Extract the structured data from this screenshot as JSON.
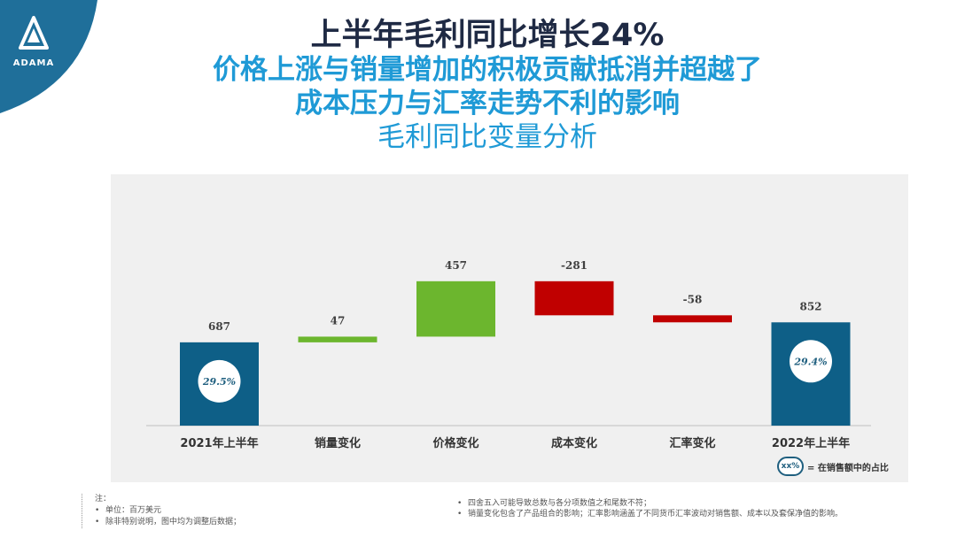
{
  "brand": {
    "name": "ADAMA",
    "color": "#1f6f9a"
  },
  "titles": {
    "line1": "上半年毛利同比增长24%",
    "line2": "价格上涨与销量增加的积极贡献抵消并超越了",
    "line3": "成本压力与汇率走势不利的影响",
    "line4": "毛利同比变量分析"
  },
  "chart_data": {
    "type": "bar",
    "subtype": "waterfall",
    "categories": [
      "2021年上半年",
      "销量变化",
      "价格变化",
      "成本变化",
      "汇率变化",
      "2022年上半年"
    ],
    "values": [
      687,
      47,
      457,
      -281,
      -58,
      852
    ],
    "value_labels": [
      "687",
      "47",
      "457",
      "-281",
      "-58",
      "852"
    ],
    "bar_kind": [
      "total",
      "delta",
      "delta",
      "delta",
      "delta",
      "total"
    ],
    "total_share_labels": [
      "29.5%",
      "",
      "",
      "",
      "",
      "29.4%"
    ],
    "colors": {
      "total": "#0e5f87",
      "increase": "#6cb62e",
      "decrease": "#c00000"
    },
    "ylim": [
      0,
      1200
    ],
    "grid": false
  },
  "legend": {
    "symbol": "xx%",
    "text": "= 在销售额中的占比"
  },
  "notes": {
    "heading": "注：",
    "left": [
      "单位：百万美元",
      "除非特别说明，图中均为调整后数据；"
    ],
    "right": [
      "四舍五入可能导致总数与各分项数值之和尾数不符；",
      "销量变化包含了产品组合的影响；汇率影响涵盖了不同货币汇率波动对销售额、成本以及套保净值的影响。"
    ]
  }
}
